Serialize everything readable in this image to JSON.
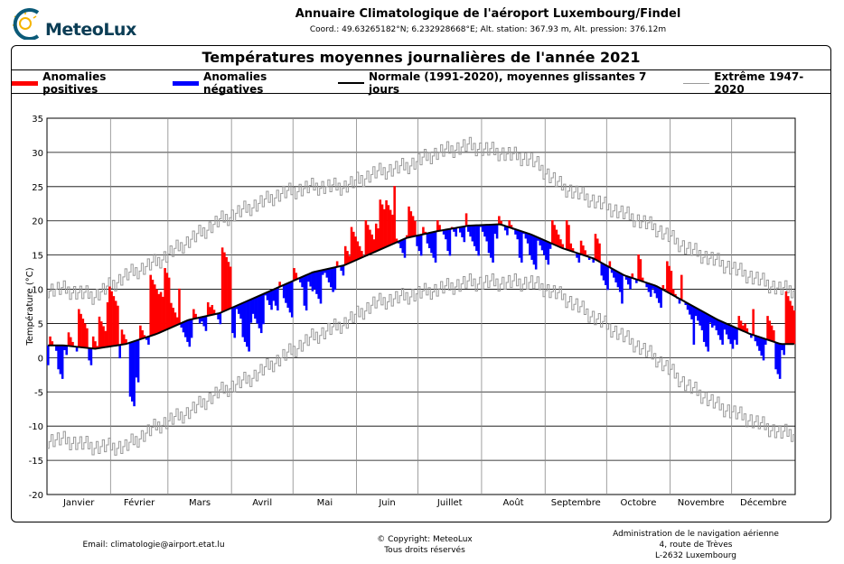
{
  "header": {
    "logo_text": "MeteoLux",
    "title": "Annuaire Climatologique de l'aéroport Luxembourg/Findel",
    "coords": "Coord.: 49.63265182°N; 6.232928668°E; Alt. station: 367.93 m, Alt. pression: 376.12m"
  },
  "footer": {
    "email": "Email: climatologie@airport.etat.lu",
    "copyright": "© Copyright: MeteoLux",
    "rights": "Tous droits réservés",
    "addr1": "Administration de le navigation aérienne",
    "addr2": "4, route de Trèves",
    "addr3": "L-2632 Luxembourg"
  },
  "chart_data": {
    "type": "bar",
    "title": "Températures moyennes journalières de l'année 2021",
    "ylabel": "Température (°C)",
    "xlabel": "",
    "ylim": [
      -20,
      35
    ],
    "yticks": [
      35,
      30,
      25,
      20,
      15,
      10,
      5,
      0,
      -5,
      -10,
      -15,
      -20
    ],
    "months": [
      "Janvier",
      "Février",
      "Mars",
      "Avril",
      "Mai",
      "Juin",
      "Juillet",
      "Août",
      "Septembre",
      "Octobre",
      "Novembre",
      "Décembre"
    ],
    "month_start_days": [
      0,
      31,
      59,
      90,
      120,
      151,
      181,
      212,
      243,
      273,
      304,
      334,
      365
    ],
    "legend": [
      {
        "label": "Anomalies positives",
        "color": "#ff0000"
      },
      {
        "label": "Anomalies négatives",
        "color": "#0000ff"
      },
      {
        "label": "Normale (1991-2020), moyennes glissantes 7 jours",
        "color": "#000000"
      },
      {
        "label": "Extrême 1947-2020",
        "color": "#999999"
      }
    ],
    "observed_5day_means": [
      1,
      -1,
      3,
      5,
      1,
      6,
      9,
      2,
      -5,
      4,
      10,
      11,
      8,
      3,
      5,
      6,
      7,
      14,
      5,
      3,
      5,
      7,
      9,
      8,
      11,
      9,
      10,
      11,
      12,
      17,
      17,
      18,
      21,
      23,
      16,
      20,
      17,
      16,
      18,
      17,
      19,
      17,
      17,
      16,
      20,
      18,
      16,
      15,
      15,
      18,
      18,
      16,
      15,
      16,
      12,
      11,
      10,
      13,
      11,
      8,
      12,
      10,
      7,
      4,
      3,
      4,
      2,
      4,
      5,
      1,
      4,
      -1,
      9
    ],
    "normal_half_month": [
      1.8,
      1.3,
      2,
      3.5,
      5.5,
      6.5,
      8.5,
      10.5,
      12.5,
      13.5,
      15.5,
      17.5,
      18.5,
      19.3,
      19.5,
      18,
      16,
      14.5,
      12,
      10.5,
      8,
      5.5,
      3.5,
      2
    ],
    "extreme_max_half_month": [
      10,
      9,
      12,
      14,
      17,
      20,
      22,
      24,
      25,
      25,
      27,
      28,
      30,
      31,
      30,
      29,
      25,
      23,
      21,
      19,
      16,
      14,
      12,
      10
    ],
    "extreme_min_half_month": [
      -12,
      -13,
      -13,
      -10,
      -8,
      -5,
      -3,
      0,
      3,
      5,
      8,
      9,
      10,
      11,
      11,
      11,
      9,
      6,
      3,
      0,
      -4,
      -7,
      -9,
      -11
    ]
  }
}
